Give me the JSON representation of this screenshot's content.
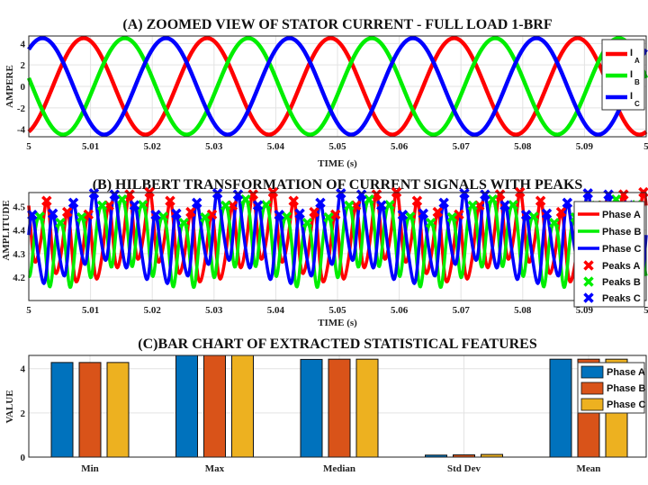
{
  "chart_data": [
    {
      "type": "line",
      "title": "(A) ZOOMED VIEW OF STATOR CURRENT - FULL LOAD 1-BRF",
      "xlabel": "TIME (s)",
      "ylabel": "AMPERE",
      "xlim": [
        5,
        5.1
      ],
      "ylim": [
        -4.7,
        4.7
      ],
      "xticks": [
        "5",
        "5.01",
        "5.02",
        "5.03",
        "5.04",
        "5.05",
        "5.06",
        "5.07",
        "5.08",
        "5.09",
        "5"
      ],
      "yticks": [
        "4",
        "2",
        "0",
        "-2",
        "-4"
      ],
      "grid": true,
      "legend_position": "top-right",
      "frequency_hz": 50,
      "amplitude": 4.5,
      "series": [
        {
          "name": "I",
          "subscript": "A",
          "color": "#ff0000",
          "phase_deg": -70
        },
        {
          "name": "I",
          "subscript": "B",
          "color": "#00ee00",
          "phase_deg": 170
        },
        {
          "name": "I",
          "subscript": "C",
          "color": "#0000ff",
          "phase_deg": 50
        }
      ]
    },
    {
      "type": "line",
      "title": "(B) HILBERT TRANSFORMATION OF CURRENT SIGNALS WITH PEAKS",
      "xlabel": "TIME (s)",
      "ylabel": "AMPLITUDE",
      "xlim": [
        5,
        5.1
      ],
      "ylim": [
        4.1,
        4.56
      ],
      "xticks": [
        "5",
        "5.01",
        "5.02",
        "5.03",
        "5.04",
        "5.05",
        "5.06",
        "5.07",
        "5.08",
        "5.09",
        "5"
      ],
      "yticks": [
        "4.5",
        "4.4",
        "4.3",
        "4.2"
      ],
      "grid": true,
      "legend_position": "top-right",
      "series": [
        {
          "name": "Phase A",
          "color": "#ff0000",
          "phase": 0.9
        },
        {
          "name": "Phase B",
          "color": "#00ee00",
          "phase": 3.0
        },
        {
          "name": "Phase C",
          "color": "#0000ff",
          "phase": 5.1
        }
      ],
      "markers": [
        {
          "name": "Peaks A",
          "color": "#ff0000"
        },
        {
          "name": "Peaks B",
          "color": "#00ee00"
        },
        {
          "name": "Peaks C",
          "color": "#0000ff"
        }
      ]
    },
    {
      "type": "bar",
      "title": "(C)BAR CHART OF EXTRACTED STATISTICAL FEATURES",
      "xlabel": "",
      "ylabel": "VALUE",
      "ylim": [
        0,
        4.6
      ],
      "yticks": [
        "4",
        "2",
        "0"
      ],
      "grid": true,
      "legend_position": "top-right",
      "categories": [
        "Min",
        "Max",
        "Median",
        "Std Dev",
        "Mean"
      ],
      "series": [
        {
          "name": "Phase A",
          "color": "#0072bd",
          "values": [
            4.28,
            4.62,
            4.42,
            0.09,
            4.43
          ]
        },
        {
          "name": "Phase B",
          "color": "#d95319",
          "values": [
            4.28,
            4.62,
            4.43,
            0.1,
            4.43
          ]
        },
        {
          "name": "Phase C",
          "color": "#edb120",
          "values": [
            4.28,
            4.62,
            4.43,
            0.12,
            4.43
          ]
        }
      ]
    }
  ]
}
